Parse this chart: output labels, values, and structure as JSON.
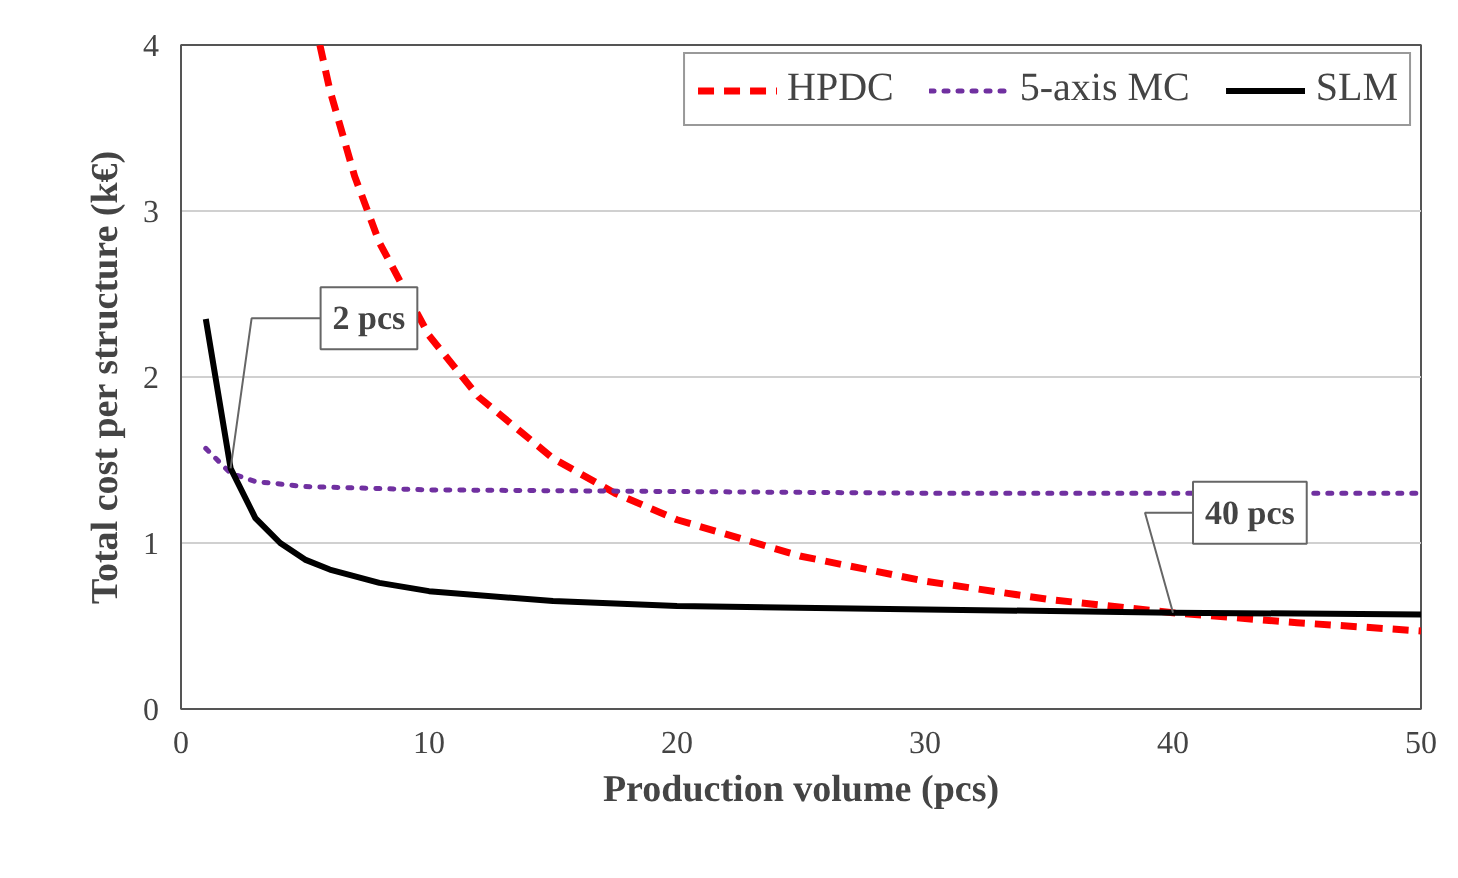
{
  "chart_data": {
    "type": "line",
    "xlabel": "Production volume (pcs)",
    "ylabel": "Total cost per structure (k€)",
    "xlim": [
      0,
      50
    ],
    "ylim": [
      0,
      4
    ],
    "xticks": [
      0,
      10,
      20,
      30,
      40,
      50
    ],
    "yticks": [
      0,
      1,
      2,
      3,
      4
    ],
    "grid": "y",
    "legend": "top right",
    "series": [
      {
        "name": "HPDC",
        "color": "#ff0000",
        "line_style": "dashed",
        "x": [
          5.6,
          6,
          7,
          8,
          10,
          12,
          15,
          17.5,
          20,
          25,
          30,
          35,
          40,
          45,
          50
        ],
        "values": [
          4.0,
          3.73,
          3.21,
          2.81,
          2.25,
          1.88,
          1.51,
          1.3,
          1.14,
          0.92,
          0.77,
          0.66,
          0.58,
          0.52,
          0.47
        ]
      },
      {
        "name": "5-axis MC",
        "color": "#7030a0",
        "line_style": "dotted",
        "x": [
          1,
          2,
          3,
          5,
          10,
          20,
          30,
          50
        ],
        "values": [
          1.57,
          1.42,
          1.37,
          1.34,
          1.32,
          1.31,
          1.3,
          1.3
        ]
      },
      {
        "name": "SLM",
        "color": "#000000",
        "line_style": "solid",
        "x": [
          1,
          2,
          3,
          4,
          5,
          6,
          8,
          10,
          15,
          20,
          30,
          40,
          50
        ],
        "values": [
          2.35,
          1.45,
          1.15,
          1.0,
          0.9,
          0.84,
          0.76,
          0.71,
          0.65,
          0.62,
          0.6,
          0.58,
          0.57
        ]
      }
    ],
    "annotations": [
      {
        "text": "2 pcs",
        "x": 2,
        "y": 1.45
      },
      {
        "text": "40 pcs",
        "x": 40,
        "y": 0.58
      }
    ]
  }
}
